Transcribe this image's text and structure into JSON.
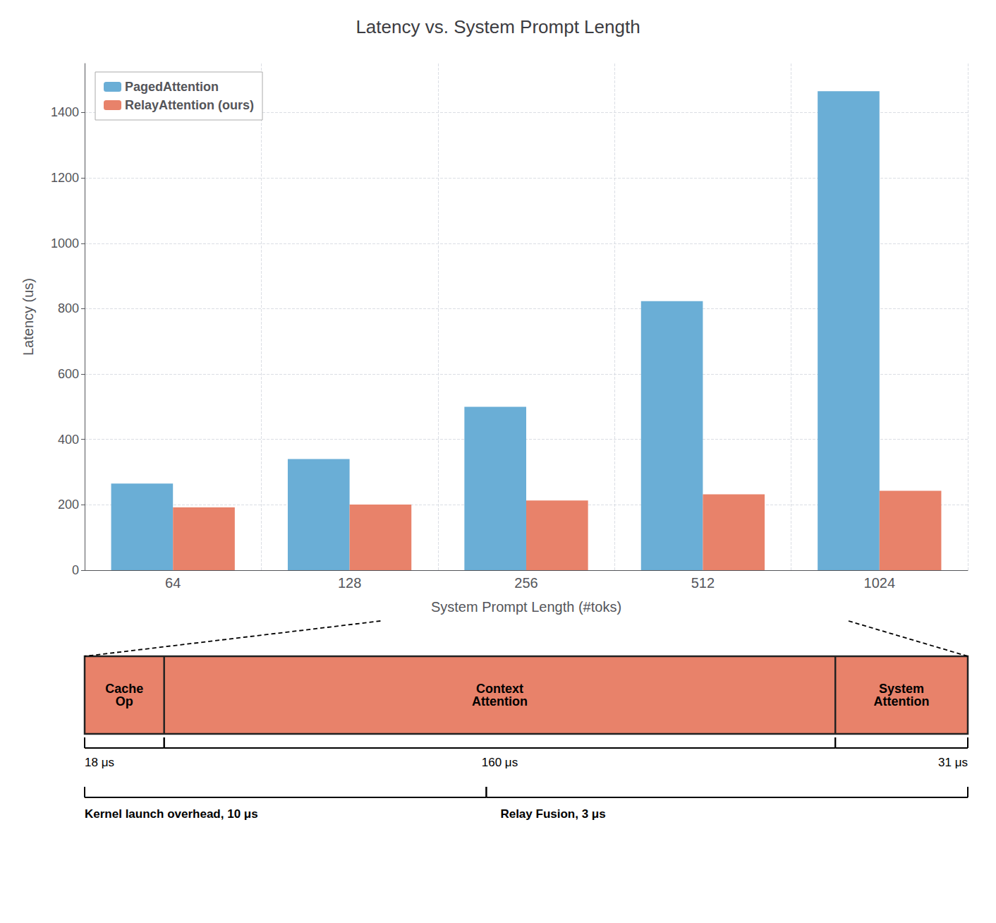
{
  "chart_data": {
    "type": "bar",
    "title": "Latency vs. System Prompt Length",
    "xlabel": "System Prompt Length (#toks)",
    "ylabel": "Latency (us)",
    "categories": [
      "64",
      "128",
      "256",
      "512",
      "1024"
    ],
    "series": [
      {
        "name": "PagedAttention",
        "color": "#6aaed6",
        "values": [
          265,
          340,
          500,
          823,
          1465
        ]
      },
      {
        "name": "RelayAttention (ours)",
        "color": "#e8826a",
        "values": [
          192,
          201,
          213,
          232,
          243
        ]
      }
    ],
    "ylim": [
      0,
      1550
    ],
    "yticks": [
      0,
      200,
      400,
      600,
      800,
      1000,
      1200,
      1400
    ],
    "grid": true,
    "legend": "upper left",
    "annotations": [
      "Cache\nOp",
      "Context\nAttention",
      "System\nAttention",
      "18 μs",
      "160 μs",
      "31 μs",
      "Kernel launch overhead, 10 μs",
      "Relay Fusion, 3 μs"
    ]
  }
}
